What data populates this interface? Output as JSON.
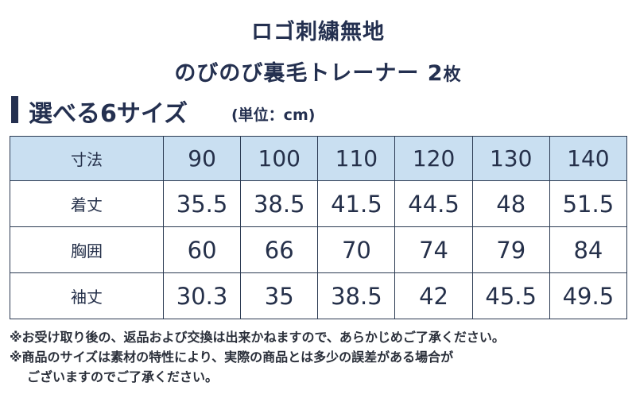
{
  "title": {
    "line1": "ロゴ刺繍無地",
    "line2": "のびのび裏毛トレーナー 2",
    "line2_suffix": "枚"
  },
  "section": {
    "heading": "選べる6サイズ",
    "unit": "(単位：cm)",
    "accent_color": "#243050"
  },
  "table": {
    "header_bg": "#c9dff1",
    "header": {
      "label": "寸法",
      "sizes": [
        "90",
        "100",
        "110",
        "120",
        "130",
        "140"
      ]
    },
    "rows": [
      {
        "label": "着丈",
        "values": [
          "35.5",
          "38.5",
          "41.5",
          "44.5",
          "48",
          "51.5"
        ]
      },
      {
        "label": "胸囲",
        "values": [
          "60",
          "66",
          "70",
          "74",
          "79",
          "84"
        ]
      },
      {
        "label": "袖丈",
        "values": [
          "30.3",
          "35",
          "38.5",
          "42",
          "45.5",
          "49.5"
        ]
      }
    ]
  },
  "notes": {
    "note1": "※お受け取り後の、返品および交換は出来かねますので、あらかじめご了承ください。",
    "note2": "※商品のサイズは素材の特性により、実際の商品とは多少の誤差がある場合が",
    "note3": "ございますのでご了承ください。"
  }
}
